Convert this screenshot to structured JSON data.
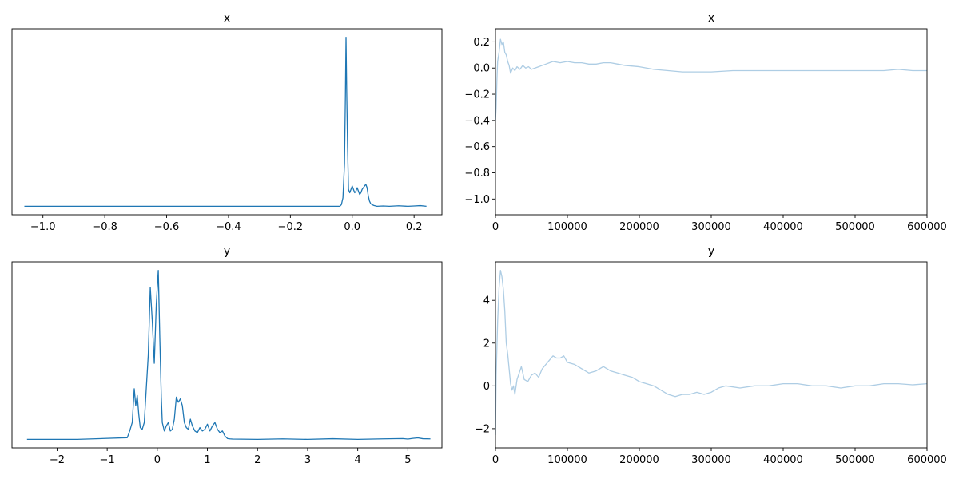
{
  "chart_data": [
    {
      "type": "line",
      "title": "x",
      "xlabel": "",
      "ylabel": "",
      "xlim": [
        -1.1,
        0.29
      ],
      "ylim": [
        -0.05,
        1.05
      ],
      "xticks": [
        -1.0,
        -0.8,
        -0.6,
        -0.4,
        -0.2,
        0.0,
        0.2
      ],
      "xtick_labels": [
        "−1.0",
        "−0.8",
        "−0.6",
        "−0.4",
        "−0.2",
        "0.0",
        "0.2"
      ],
      "yticks": [],
      "grid": false,
      "series": [
        {
          "color": "#1f77b4",
          "x": [
            -1.06,
            -0.2,
            -0.04,
            -0.035,
            -0.03,
            -0.025,
            -0.022,
            -0.02,
            -0.018,
            -0.015,
            -0.012,
            -0.008,
            -0.004,
            0.0,
            0.004,
            0.008,
            0.012,
            0.016,
            0.02,
            0.024,
            0.028,
            0.032,
            0.036,
            0.04,
            0.044,
            0.048,
            0.052,
            0.056,
            0.06,
            0.064,
            0.07,
            0.08,
            0.1,
            0.12,
            0.15,
            0.18,
            0.2,
            0.22,
            0.24
          ],
          "y": [
            0.0,
            0.0,
            0.0,
            0.01,
            0.05,
            0.25,
            0.65,
            1.0,
            0.7,
            0.35,
            0.1,
            0.08,
            0.1,
            0.12,
            0.1,
            0.08,
            0.09,
            0.11,
            0.09,
            0.07,
            0.08,
            0.1,
            0.11,
            0.12,
            0.13,
            0.11,
            0.06,
            0.03,
            0.015,
            0.01,
            0.005,
            0.0,
            0.002,
            0.0,
            0.003,
            0.0,
            0.002,
            0.004,
            0.0
          ]
        }
      ]
    },
    {
      "type": "line",
      "title": "x",
      "xlabel": "",
      "ylabel": "",
      "xlim": [
        0,
        600000
      ],
      "ylim": [
        -1.12,
        0.3
      ],
      "xticks": [
        0,
        100000,
        200000,
        300000,
        400000,
        500000,
        600000
      ],
      "xtick_labels": [
        "0",
        "100000",
        "200000",
        "300000",
        "400000",
        "500000",
        "600000"
      ],
      "yticks": [
        0.2,
        0.0,
        -0.2,
        -0.4,
        -0.6,
        -0.8,
        -1.0
      ],
      "ytick_labels": [
        "0.2",
        "0.0",
        "−0.2",
        "−0.4",
        "−0.6",
        "−0.8",
        "−1.0"
      ],
      "grid": false,
      "series": [
        {
          "color": "#aecde4",
          "x": [
            0,
            1000,
            2000,
            3000,
            5000,
            7000,
            9000,
            11000,
            13000,
            15000,
            17000,
            19000,
            21000,
            24000,
            27000,
            30000,
            34000,
            38000,
            42000,
            46000,
            50000,
            55000,
            60000,
            65000,
            70000,
            75000,
            80000,
            90000,
            100000,
            110000,
            120000,
            130000,
            140000,
            150000,
            160000,
            170000,
            180000,
            200000,
            220000,
            240000,
            260000,
            280000,
            300000,
            330000,
            360000,
            400000,
            450000,
            500000,
            540000,
            560000,
            580000,
            600000
          ],
          "y": [
            -0.4,
            -0.3,
            -0.1,
            0.05,
            0.12,
            0.22,
            0.18,
            0.2,
            0.12,
            0.1,
            0.05,
            0.02,
            -0.04,
            0.0,
            -0.02,
            0.01,
            -0.01,
            0.02,
            0.0,
            0.01,
            -0.01,
            0.0,
            0.01,
            0.02,
            0.03,
            0.04,
            0.05,
            0.04,
            0.05,
            0.04,
            0.04,
            0.03,
            0.03,
            0.04,
            0.04,
            0.03,
            0.02,
            0.01,
            -0.01,
            -0.02,
            -0.03,
            -0.03,
            -0.03,
            -0.02,
            -0.02,
            -0.02,
            -0.02,
            -0.02,
            -0.02,
            -0.01,
            -0.02,
            -0.02
          ]
        }
      ]
    },
    {
      "type": "line",
      "title": "y",
      "xlabel": "",
      "ylabel": "",
      "xlim": [
        -2.9,
        5.68
      ],
      "ylim": [
        -0.05,
        1.05
      ],
      "xticks": [
        -2,
        -1,
        0,
        1,
        2,
        3,
        4,
        5
      ],
      "xtick_labels": [
        "−2",
        "−1",
        "0",
        "1",
        "2",
        "3",
        "4",
        "5"
      ],
      "yticks": [],
      "grid": false,
      "series": [
        {
          "color": "#1f77b4",
          "x": [
            -2.6,
            -1.6,
            -0.6,
            -0.55,
            -0.5,
            -0.46,
            -0.43,
            -0.4,
            -0.37,
            -0.34,
            -0.3,
            -0.26,
            -0.22,
            -0.18,
            -0.14,
            -0.1,
            -0.06,
            -0.02,
            0.0,
            0.02,
            0.05,
            0.08,
            0.1,
            0.14,
            0.18,
            0.22,
            0.26,
            0.3,
            0.34,
            0.38,
            0.42,
            0.46,
            0.5,
            0.54,
            0.58,
            0.62,
            0.66,
            0.7,
            0.75,
            0.8,
            0.85,
            0.9,
            0.95,
            1.0,
            1.05,
            1.1,
            1.15,
            1.2,
            1.25,
            1.3,
            1.35,
            1.4,
            1.45,
            1.5,
            2.0,
            2.5,
            3.0,
            3.5,
            4.0,
            4.5,
            4.9,
            5.0,
            5.1,
            5.2,
            5.3,
            5.45
          ],
          "y": [
            0.0,
            0.0,
            0.01,
            0.05,
            0.1,
            0.3,
            0.2,
            0.26,
            0.15,
            0.07,
            0.06,
            0.1,
            0.3,
            0.5,
            0.9,
            0.7,
            0.45,
            0.8,
            0.9,
            1.0,
            0.6,
            0.25,
            0.1,
            0.05,
            0.08,
            0.1,
            0.05,
            0.06,
            0.12,
            0.25,
            0.22,
            0.24,
            0.2,
            0.1,
            0.07,
            0.06,
            0.12,
            0.08,
            0.05,
            0.04,
            0.07,
            0.05,
            0.06,
            0.09,
            0.05,
            0.08,
            0.1,
            0.06,
            0.04,
            0.05,
            0.02,
            0.005,
            0.003,
            0.002,
            0.0,
            0.003,
            0.0,
            0.004,
            0.0,
            0.003,
            0.005,
            0.002,
            0.006,
            0.009,
            0.004,
            0.003
          ]
        }
      ]
    },
    {
      "type": "line",
      "title": "y",
      "xlabel": "",
      "ylabel": "",
      "xlim": [
        0,
        600000
      ],
      "ylim": [
        -2.9,
        5.8
      ],
      "xticks": [
        0,
        100000,
        200000,
        300000,
        400000,
        500000,
        600000
      ],
      "xtick_labels": [
        "0",
        "100000",
        "200000",
        "300000",
        "400000",
        "500000",
        "600000"
      ],
      "yticks": [
        4,
        2,
        0,
        -2
      ],
      "ytick_labels": [
        "4",
        "2",
        "0",
        "−2"
      ],
      "grid": false,
      "series": [
        {
          "color": "#aecde4",
          "x": [
            0,
            1000,
            3000,
            5000,
            7000,
            9000,
            11000,
            13000,
            15000,
            17000,
            19000,
            21000,
            23000,
            25000,
            27000,
            30000,
            33000,
            36000,
            40000,
            45000,
            50000,
            55000,
            60000,
            65000,
            70000,
            75000,
            80000,
            85000,
            90000,
            95000,
            100000,
            110000,
            120000,
            130000,
            140000,
            150000,
            160000,
            170000,
            180000,
            190000,
            200000,
            210000,
            220000,
            230000,
            240000,
            250000,
            260000,
            270000,
            280000,
            290000,
            300000,
            310000,
            320000,
            340000,
            360000,
            380000,
            400000,
            420000,
            440000,
            460000,
            480000,
            500000,
            520000,
            540000,
            560000,
            580000,
            600000
          ],
          "y": [
            -2.3,
            0.5,
            3.0,
            4.6,
            5.4,
            5.1,
            4.5,
            3.5,
            2.0,
            1.5,
            0.8,
            0.1,
            -0.2,
            0.0,
            -0.4,
            0.3,
            0.6,
            0.9,
            0.3,
            0.2,
            0.5,
            0.6,
            0.4,
            0.8,
            1.0,
            1.2,
            1.4,
            1.3,
            1.3,
            1.4,
            1.1,
            1.0,
            0.8,
            0.6,
            0.7,
            0.9,
            0.7,
            0.6,
            0.5,
            0.4,
            0.2,
            0.1,
            0.0,
            -0.2,
            -0.4,
            -0.5,
            -0.4,
            -0.4,
            -0.3,
            -0.4,
            -0.3,
            -0.1,
            0.0,
            -0.1,
            0.0,
            0.0,
            0.1,
            0.1,
            0.0,
            0.0,
            -0.1,
            0.0,
            0.0,
            0.1,
            0.1,
            0.05,
            0.1
          ]
        }
      ]
    }
  ]
}
